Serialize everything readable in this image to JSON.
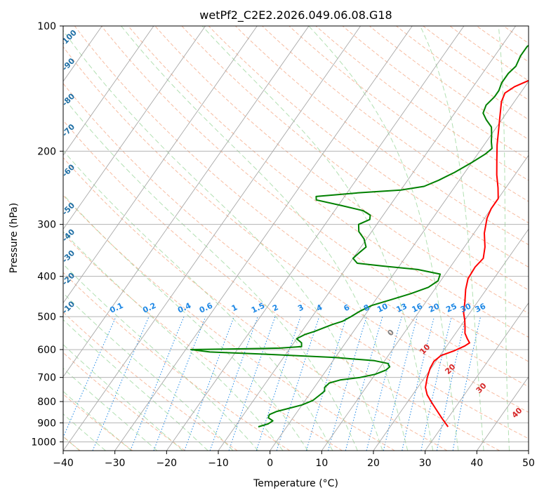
{
  "chart_data": {
    "type": "line",
    "title": "wetPf2_C2E2.2026.049.06.08.G18",
    "xlabel": "Temperature (°C)",
    "ylabel": "Pressure (hPa)",
    "xlim": [
      -40,
      50
    ],
    "ylim": [
      1050,
      100
    ],
    "y_scale": "log",
    "x_ticks": [
      -40,
      -30,
      -20,
      -10,
      0,
      10,
      20,
      30,
      40,
      50
    ],
    "y_ticks": [
      100,
      200,
      300,
      400,
      500,
      600,
      700,
      800,
      900,
      1000
    ],
    "grid": true,
    "series": [
      {
        "name": "",
        "color": "#ff0000",
        "points": [
          [
            31.2,
            920
          ],
          [
            29.0,
            880
          ],
          [
            26.5,
            835
          ],
          [
            24.5,
            800
          ],
          [
            22.8,
            770
          ],
          [
            21.5,
            740
          ],
          [
            20.5,
            700
          ],
          [
            19.8,
            665
          ],
          [
            19.6,
            640
          ],
          [
            20.2,
            620
          ],
          [
            22.0,
            605
          ],
          [
            23.5,
            588
          ],
          [
            24.0,
            578
          ],
          [
            23.0,
            565
          ],
          [
            21.8,
            548
          ],
          [
            21.0,
            530
          ],
          [
            20.0,
            510
          ],
          [
            18.8,
            490
          ],
          [
            17.5,
            460
          ],
          [
            16.0,
            430
          ],
          [
            15.0,
            405
          ],
          [
            14.8,
            380
          ],
          [
            15.2,
            362
          ],
          [
            14.0,
            340
          ],
          [
            12.0,
            315
          ],
          [
            10.5,
            290
          ],
          [
            10.0,
            275
          ],
          [
            10.0,
            260
          ],
          [
            8.5,
            245
          ],
          [
            6.5,
            228
          ],
          [
            4.5,
            210
          ],
          [
            2.5,
            193
          ],
          [
            0.8,
            178
          ],
          [
            -0.8,
            165
          ],
          [
            -2.5,
            152
          ],
          [
            -3.0,
            145
          ],
          [
            -2.0,
            140
          ],
          [
            0.0,
            135
          ],
          [
            2.0,
            130
          ],
          [
            2.2,
            125
          ],
          [
            2.0,
            117
          ],
          [
            2.0,
            112
          ],
          [
            2.8,
            106
          ],
          [
            3.8,
            100
          ]
        ]
      },
      {
        "name": "",
        "color": "#008000",
        "points": [
          [
            -5.5,
            920
          ],
          [
            -4.0,
            905
          ],
          [
            -3.5,
            890
          ],
          [
            -4.8,
            875
          ],
          [
            -5.0,
            860
          ],
          [
            -4.0,
            845
          ],
          [
            -2.0,
            830
          ],
          [
            0.0,
            815
          ],
          [
            1.5,
            795
          ],
          [
            2.0,
            775
          ],
          [
            2.5,
            755
          ],
          [
            2.0,
            740
          ],
          [
            2.3,
            722
          ],
          [
            4.0,
            710
          ],
          [
            7.5,
            700
          ],
          [
            10.0,
            688
          ],
          [
            11.5,
            672
          ],
          [
            11.8,
            660
          ],
          [
            11.0,
            648
          ],
          [
            8.0,
            638
          ],
          [
            0.0,
            627
          ],
          [
            -12.0,
            617
          ],
          [
            -25.0,
            608
          ],
          [
            -29.0,
            600
          ],
          [
            -22.0,
            598
          ],
          [
            -12.0,
            595
          ],
          [
            -8.0,
            590
          ],
          [
            -8.5,
            578
          ],
          [
            -10.0,
            565
          ],
          [
            -9.0,
            552
          ],
          [
            -7.5,
            542
          ],
          [
            -6.0,
            530
          ],
          [
            -5.0,
            522
          ],
          [
            -3.5,
            513
          ],
          [
            -2.5,
            500
          ],
          [
            -1.5,
            485
          ],
          [
            0.0,
            470
          ],
          [
            3.0,
            455
          ],
          [
            6.0,
            440
          ],
          [
            8.5,
            425
          ],
          [
            9.5,
            410
          ],
          [
            9.0,
            395
          ],
          [
            4.0,
            385
          ],
          [
            -3.0,
            378
          ],
          [
            -8.5,
            372
          ],
          [
            -10.0,
            362
          ],
          [
            -9.5,
            350
          ],
          [
            -9.0,
            340
          ],
          [
            -10.5,
            325
          ],
          [
            -12.5,
            312
          ],
          [
            -13.5,
            300
          ],
          [
            -12.0,
            292
          ],
          [
            -12.5,
            285
          ],
          [
            -14.5,
            278
          ],
          [
            -19.5,
            270
          ],
          [
            -25.0,
            262
          ],
          [
            -25.5,
            257
          ],
          [
            -18.0,
            252
          ],
          [
            -10.0,
            248
          ],
          [
            -6.0,
            243
          ],
          [
            -4.0,
            235
          ],
          [
            -2.0,
            225
          ],
          [
            0.0,
            213
          ],
          [
            1.5,
            203
          ],
          [
            2.0,
            197
          ],
          [
            1.0,
            190
          ],
          [
            0.0,
            182
          ],
          [
            -1.0,
            175
          ],
          [
            -3.0,
            168
          ],
          [
            -4.5,
            162
          ],
          [
            -5.0,
            155
          ],
          [
            -4.5,
            148
          ],
          [
            -4.5,
            143
          ],
          [
            -5.0,
            137
          ],
          [
            -5.0,
            130
          ],
          [
            -4.5,
            125
          ],
          [
            -5.0,
            118
          ],
          [
            -5.0,
            112
          ],
          [
            -3.5,
            106
          ],
          [
            -1.5,
            100
          ]
        ]
      }
    ],
    "mixing_ratio_labels": [
      "0.1",
      "0.2",
      "0.4",
      "0.6",
      "1",
      "1.5",
      "2",
      "3",
      "4",
      "6",
      "8",
      "10",
      "13",
      "16",
      "20",
      "25",
      "30",
      "36"
    ],
    "mixing_ratio_color": "#1e88e5",
    "dry_adiabat_labels": [
      "-100",
      "-90",
      "-80",
      "-70",
      "-60",
      "-50",
      "-40",
      "-30",
      "-20",
      "-10"
    ],
    "dry_adiabat_color": "#1f6fa5",
    "moist_adiabat_labels": [
      "0",
      "10",
      "20",
      "30",
      "40"
    ],
    "moist_adiabat_color": "#d62728",
    "moist_zero_color": "#808080",
    "skew": 35
  }
}
